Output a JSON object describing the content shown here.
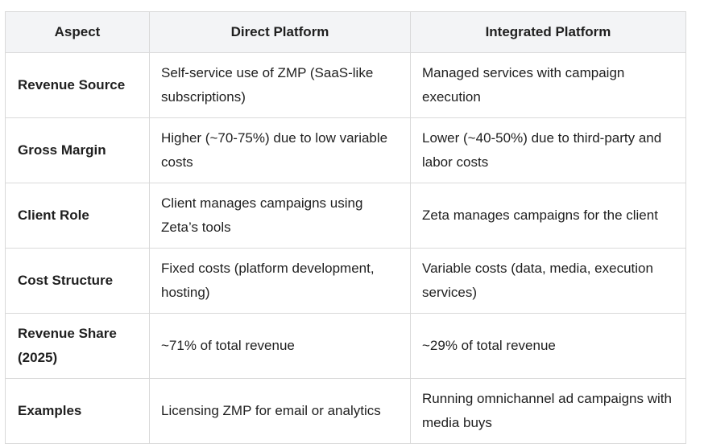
{
  "table": {
    "headers": [
      "Aspect",
      "Direct Platform",
      "Integrated Platform"
    ],
    "rows": [
      [
        "Revenue Source",
        "Self-service use of ZMP (SaaS-like subscriptions)",
        "Managed services with campaign execution"
      ],
      [
        "Gross Margin",
        "Higher (~70-75%) due to low variable costs",
        "Lower (~40-50%) due to third-party and labor costs"
      ],
      [
        "Client Role",
        "Client manages campaigns using Zeta’s tools",
        "Zeta manages campaigns for the client"
      ],
      [
        "Cost Structure",
        "Fixed costs (platform development, hosting)",
        "Variable costs (data, media, execution services)"
      ],
      [
        "Revenue Share (2025)",
        "~71% of total revenue",
        "~29% of total revenue"
      ],
      [
        "Examples",
        "Licensing ZMP for email or analytics",
        "Running omnichannel ad campaigns with media buys"
      ]
    ]
  }
}
